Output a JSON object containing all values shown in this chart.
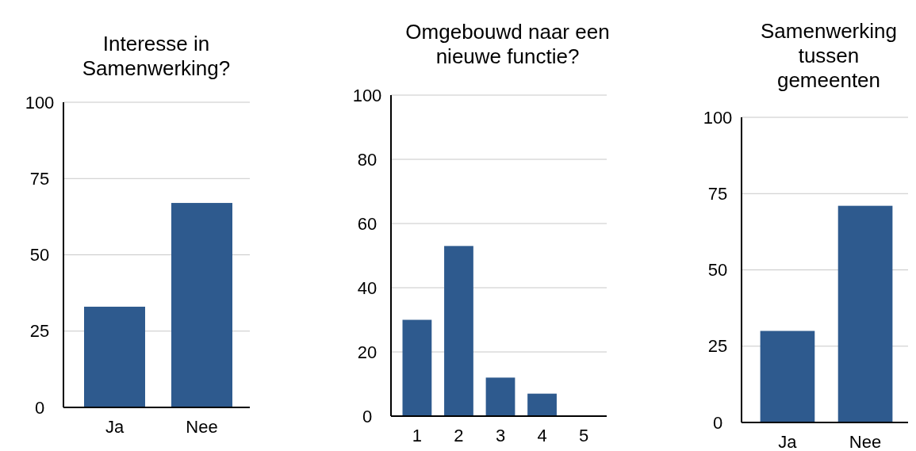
{
  "chart_data": [
    {
      "type": "bar",
      "title": "Interesse in Samenwerking?",
      "categories": [
        "Ja",
        "Nee"
      ],
      "values": [
        33,
        67
      ],
      "color": "#2e5a8e",
      "ylim": [
        0,
        100
      ],
      "yticks": [
        0,
        25,
        50,
        75,
        100
      ],
      "grid": "y"
    },
    {
      "type": "bar",
      "title": "Omgebouwd naar een nieuwe functie?",
      "categories": [
        "1",
        "2",
        "3",
        "4",
        "5"
      ],
      "values": [
        30,
        53,
        12,
        7,
        0
      ],
      "color": "#2e5a8e",
      "ylim": [
        0,
        100
      ],
      "yticks": [
        0,
        20,
        40,
        60,
        80,
        100
      ],
      "grid": "y"
    },
    {
      "type": "bar",
      "title": "Samenwerking tussen gemeenten",
      "categories": [
        "Ja",
        "Nee"
      ],
      "values": [
        30,
        71
      ],
      "color": "#2e5a8e",
      "ylim": [
        0,
        100
      ],
      "yticks": [
        0,
        25,
        50,
        75,
        100
      ],
      "grid": "y"
    }
  ]
}
